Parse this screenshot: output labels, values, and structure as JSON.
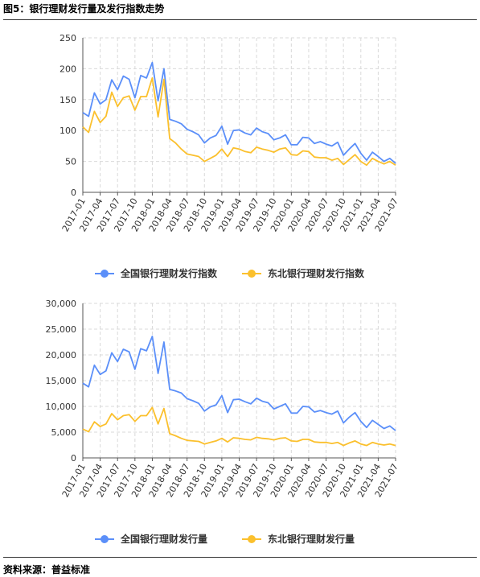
{
  "figure_title": "图5：银行理财发行量及发行指数走势",
  "source": "资料来源：普益标准",
  "colors": {
    "blue": "#5b8ff9",
    "yellow": "#fbc02d",
    "grid": "#d9d9d9",
    "axis": "#555555"
  },
  "chart_data": [
    {
      "type": "line",
      "ylim": [
        0,
        250
      ],
      "yticks": [
        "0",
        "50",
        "100",
        "150",
        "200",
        "250"
      ],
      "x_labels": [
        "2017-01",
        "2017-04",
        "2017-07",
        "2017-10",
        "2018-01",
        "2018-04",
        "2018-07",
        "2018-10",
        "2019-01",
        "2019-04",
        "2019-07",
        "2019-10",
        "2020-01",
        "2020-04",
        "2020-07",
        "2020-10",
        "2021-01",
        "2021-04",
        "2021-07"
      ],
      "series": [
        {
          "name": "全国银行理财发行指数",
          "color": "#5b8ff9",
          "values": [
            129,
            123,
            161,
            143,
            150,
            182,
            166,
            188,
            183,
            153,
            189,
            185,
            210,
            148,
            200,
            118,
            115,
            111,
            102,
            98,
            93,
            80,
            88,
            92,
            107,
            78,
            100,
            101,
            96,
            93,
            104,
            98,
            95,
            85,
            88,
            93,
            77,
            77,
            89,
            88,
            79,
            82,
            78,
            75,
            81,
            60,
            70,
            79,
            63,
            52,
            65,
            58,
            50,
            55,
            47
          ]
        },
        {
          "name": "东北银行理财发行指数",
          "color": "#fbc02d",
          "values": [
            106,
            97,
            131,
            113,
            123,
            162,
            139,
            153,
            156,
            133,
            155,
            155,
            185,
            122,
            183,
            87,
            80,
            70,
            62,
            60,
            58,
            50,
            55,
            60,
            70,
            58,
            72,
            70,
            66,
            64,
            73,
            70,
            68,
            65,
            70,
            72,
            61,
            60,
            67,
            66,
            57,
            56,
            56,
            52,
            55,
            45,
            53,
            61,
            50,
            44,
            55,
            50,
            46,
            50,
            44
          ]
        }
      ]
    },
    {
      "type": "line",
      "ylim": [
        0,
        30000
      ],
      "yticks": [
        "0",
        "5,000",
        "10,000",
        "15,000",
        "20,000",
        "25,000",
        "30,000"
      ],
      "x_labels": [
        "2017-01",
        "2017-04",
        "2017-07",
        "2017-10",
        "2018-01",
        "2018-04",
        "2018-07",
        "2018-10",
        "2019-01",
        "2019-04",
        "2019-07",
        "2019-10",
        "2020-01",
        "2020-04",
        "2020-07",
        "2020-10",
        "2021-01",
        "2021-04",
        "2021-07"
      ],
      "series": [
        {
          "name": "全国银行理财发行量",
          "color": "#5b8ff9",
          "values": [
            14500,
            13800,
            18000,
            16200,
            16900,
            20400,
            18700,
            21100,
            20600,
            17200,
            21200,
            20800,
            23600,
            16400,
            22500,
            13300,
            13000,
            12600,
            11500,
            11100,
            10600,
            9100,
            9900,
            10300,
            12100,
            8800,
            11300,
            11400,
            10900,
            10500,
            11600,
            11000,
            10700,
            9500,
            10000,
            10500,
            8700,
            8700,
            10000,
            9900,
            8900,
            9200,
            8800,
            8500,
            9100,
            6800,
            7900,
            8800,
            7100,
            5900,
            7300,
            6500,
            5700,
            6200,
            5300
          ]
        },
        {
          "name": "东北银行理财发行量",
          "color": "#fbc02d",
          "values": [
            5600,
            5100,
            7000,
            6100,
            6600,
            8600,
            7400,
            8200,
            8400,
            7100,
            8200,
            8200,
            9800,
            6600,
            9600,
            4700,
            4300,
            3800,
            3400,
            3300,
            3200,
            2700,
            3000,
            3300,
            3800,
            3100,
            3900,
            3800,
            3600,
            3500,
            4000,
            3800,
            3700,
            3500,
            3800,
            3900,
            3300,
            3200,
            3600,
            3600,
            3100,
            3000,
            3000,
            2800,
            3000,
            2400,
            2900,
            3300,
            2700,
            2400,
            3000,
            2700,
            2500,
            2700,
            2400
          ]
        }
      ]
    }
  ]
}
